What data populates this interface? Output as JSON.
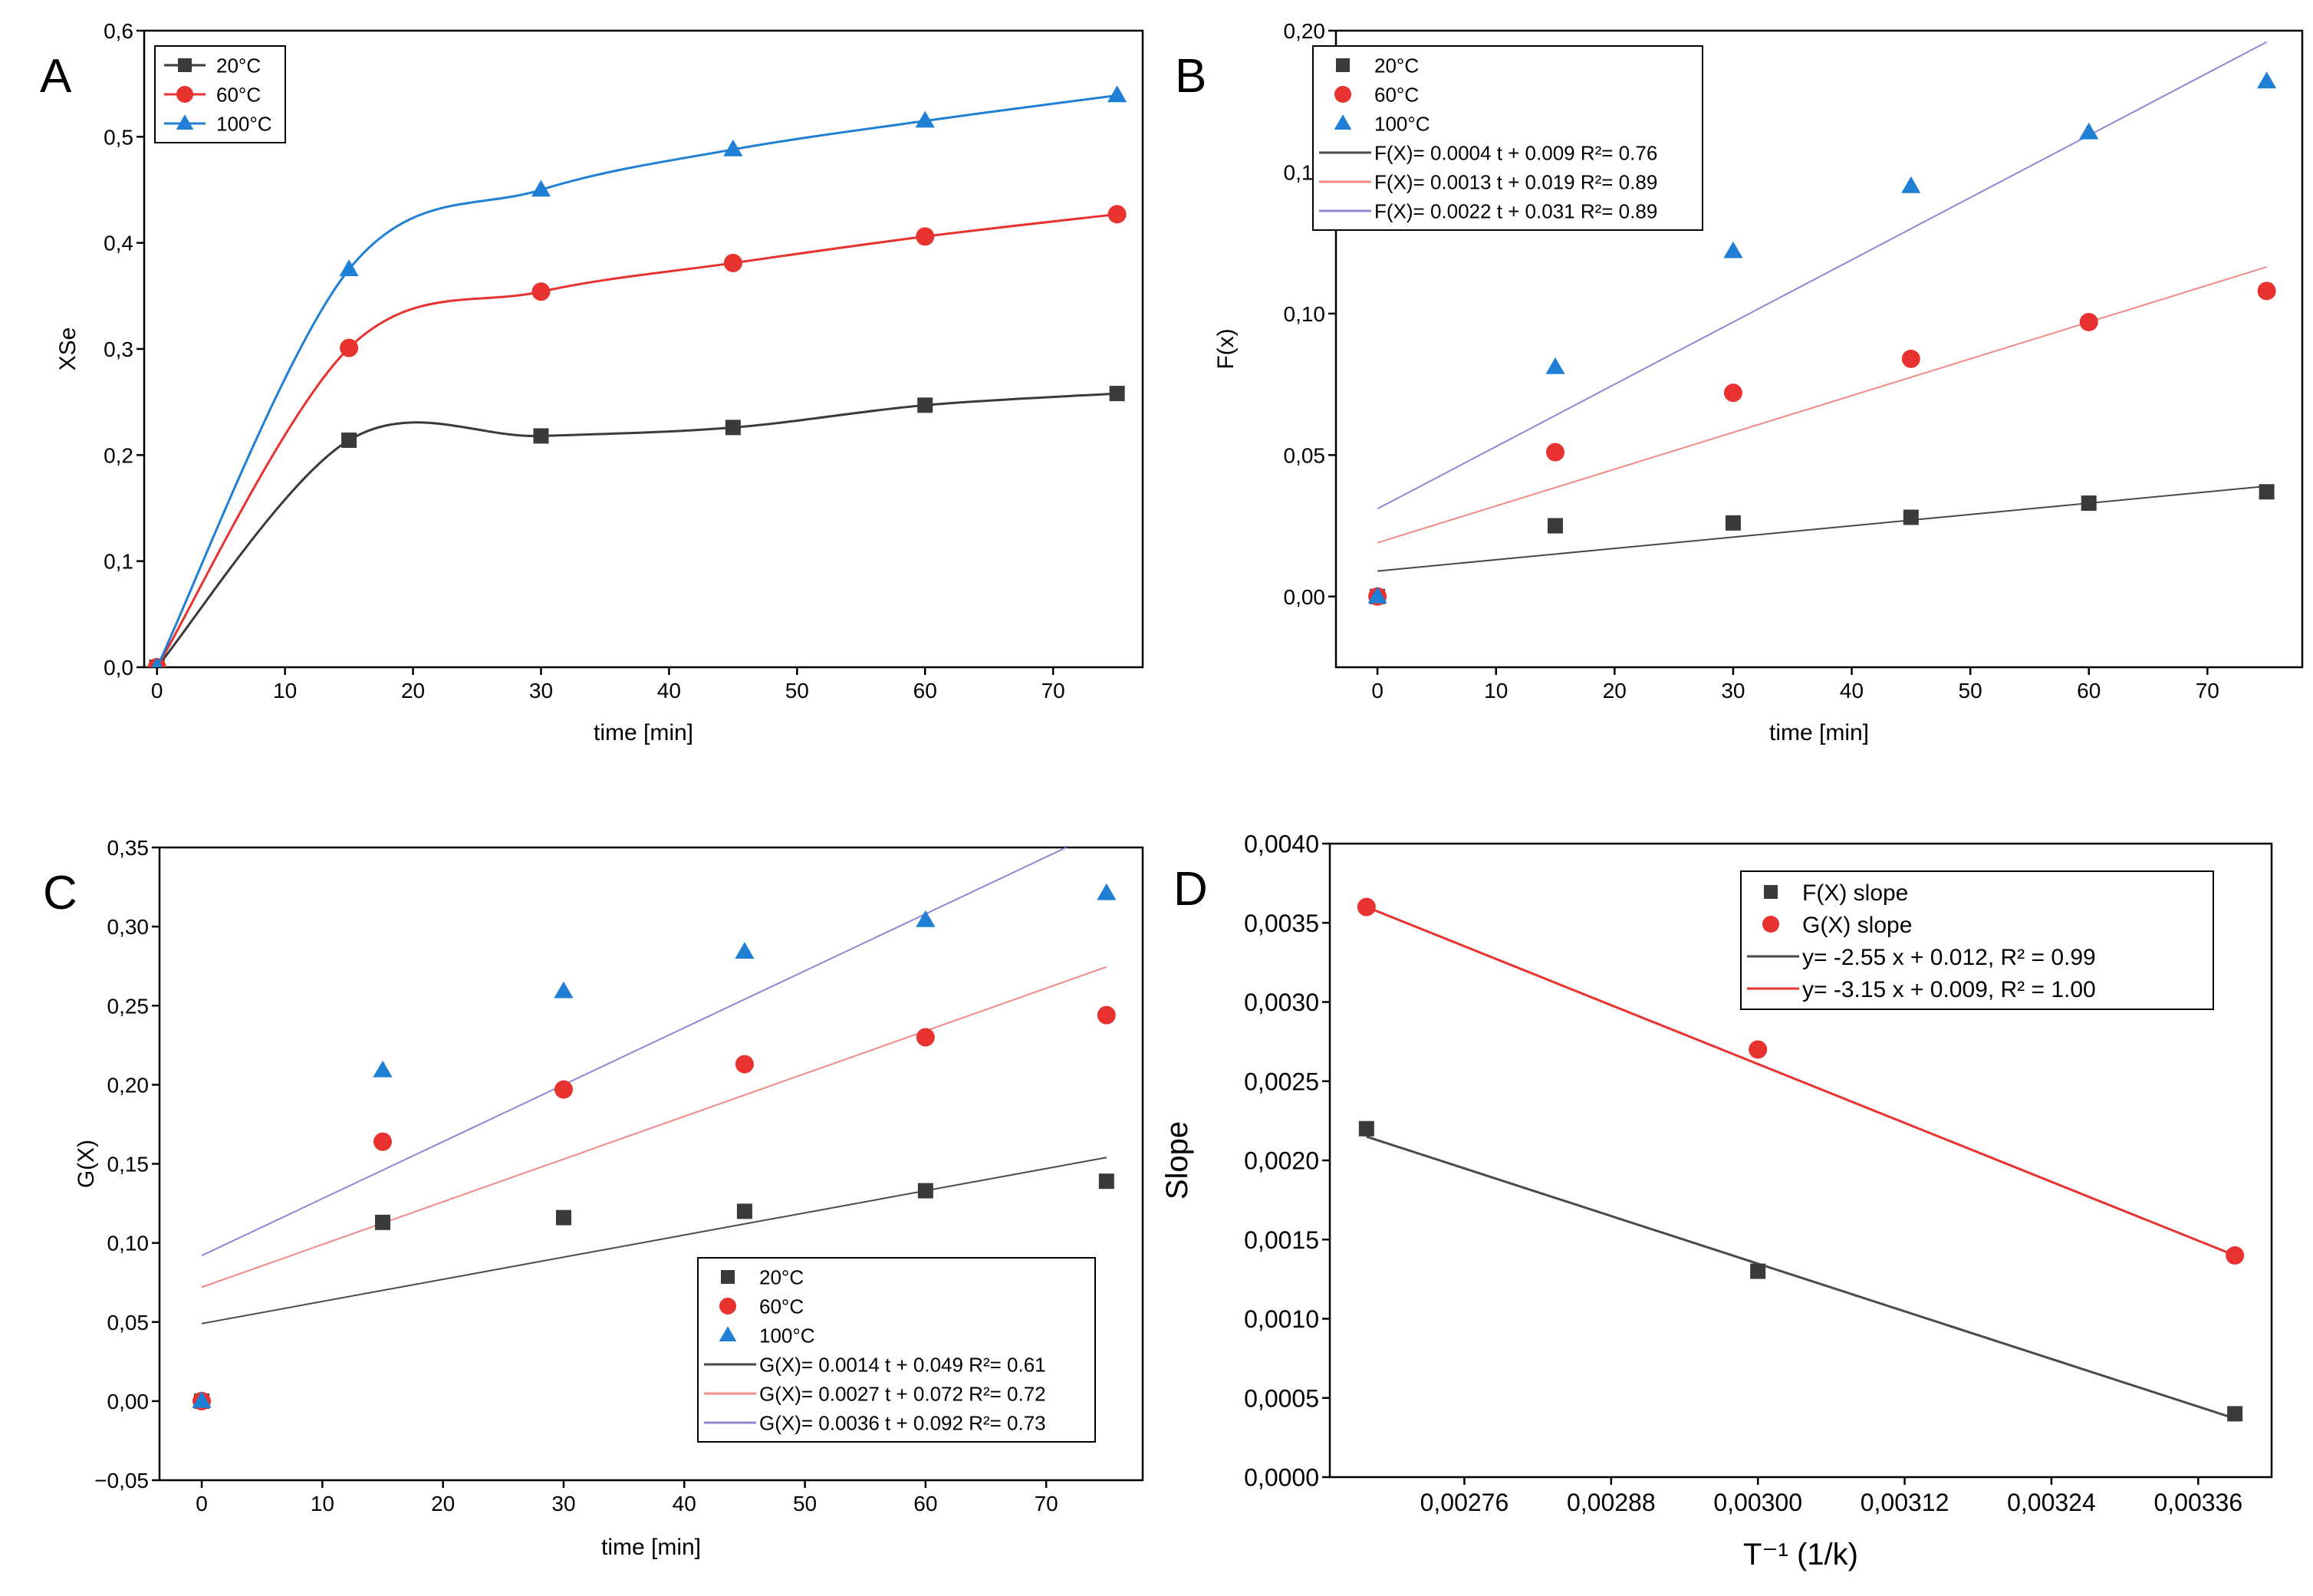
{
  "panels": [
    {
      "id": "A",
      "letter": "A",
      "chart_data": {
        "type": "line",
        "xlabel": "time [min]",
        "ylabel": "XSe",
        "xlim": [
          -1,
          77
        ],
        "ylim": [
          0,
          0.6
        ],
        "xticks": [
          0,
          10,
          20,
          30,
          40,
          50,
          60,
          70
        ],
        "xtick_labels": [
          "0",
          "10",
          "20",
          "30",
          "40",
          "50",
          "60",
          "70"
        ],
        "yticks": [
          0,
          0.1,
          0.2,
          0.3,
          0.4,
          0.5,
          0.6
        ],
        "ytick_labels": [
          "0,0",
          "0,1",
          "0,2",
          "0,3",
          "0,4",
          "0,5",
          "0,6"
        ],
        "legend_position": "top-left",
        "series": [
          {
            "name": "20°C",
            "color": "#3a3a3a",
            "marker": "square",
            "curve": "smooth",
            "x": [
              0,
              15,
              30,
              45,
              60,
              75
            ],
            "y": [
              0,
              0.214,
              0.218,
              0.226,
              0.247,
              0.258
            ]
          },
          {
            "name": "60°C",
            "color": "#e8322f",
            "marker": "circle",
            "curve": "smooth",
            "x": [
              0,
              15,
              30,
              45,
              60,
              75
            ],
            "y": [
              0,
              0.301,
              0.354,
              0.381,
              0.406,
              0.427
            ]
          },
          {
            "name": "100°C",
            "color": "#1f7fd4",
            "marker": "triangle",
            "curve": "smooth",
            "x": [
              0,
              15,
              30,
              45,
              60,
              75
            ],
            "y": [
              0,
              0.375,
              0.45,
              0.488,
              0.515,
              0.539
            ]
          }
        ]
      }
    },
    {
      "id": "B",
      "letter": "B",
      "chart_data": {
        "type": "scatter",
        "xlabel": "time [min]",
        "ylabel": "F(x)",
        "xlim": [
          -3.5,
          78
        ],
        "ylim": [
          -0.025,
          0.2
        ],
        "xticks": [
          0,
          10,
          20,
          30,
          40,
          50,
          60,
          70
        ],
        "xtick_labels": [
          "0",
          "10",
          "20",
          "30",
          "40",
          "50",
          "60",
          "70"
        ],
        "yticks": [
          0,
          0.05,
          0.1,
          0.15,
          0.2
        ],
        "ytick_labels": [
          "0,00",
          "0,05",
          "0,10",
          "0,15",
          "0,20"
        ],
        "legend_position": "top-left",
        "series": [
          {
            "name": "20°C",
            "color": "#3a3a3a",
            "marker": "square",
            "x": [
              0,
              15,
              30,
              45,
              60,
              75
            ],
            "y": [
              0,
              0.025,
              0.026,
              0.028,
              0.033,
              0.037
            ]
          },
          {
            "name": "60°C",
            "color": "#e8322f",
            "marker": "circle",
            "x": [
              0,
              15,
              30,
              45,
              60,
              75
            ],
            "y": [
              0,
              0.051,
              0.072,
              0.084,
              0.097,
              0.108
            ]
          },
          {
            "name": "100°C",
            "color": "#1f7fd4",
            "marker": "triangle",
            "x": [
              0,
              15,
              30,
              45,
              60,
              75
            ],
            "y": [
              0,
              0.081,
              0.122,
              0.145,
              0.164,
              0.182
            ]
          }
        ],
        "fits": [
          {
            "label": "F(X)= 0.0004 t + 0.009 R²= 0.76",
            "color": "#4a4a4a",
            "slope": 0.0004,
            "intercept": 0.009
          },
          {
            "label": "F(X)= 0.0013 t + 0.019 R²= 0.89",
            "color": "#f08a84",
            "slope": 0.0013,
            "intercept": 0.019
          },
          {
            "label": "F(X)= 0.0022 t + 0.031 R²= 0.89",
            "color": "#8f86d6",
            "slope": 0.0022,
            "intercept": 0.031
          }
        ]
      }
    },
    {
      "id": "C",
      "letter": "C",
      "chart_data": {
        "type": "scatter",
        "xlabel": "time [min]",
        "ylabel": "G(X)",
        "xlim": [
          -3.5,
          78
        ],
        "ylim": [
          -0.05,
          0.35
        ],
        "xticks": [
          0,
          10,
          20,
          30,
          40,
          50,
          60,
          70
        ],
        "xtick_labels": [
          "0",
          "10",
          "20",
          "30",
          "40",
          "50",
          "60",
          "70"
        ],
        "yticks": [
          -0.05,
          0,
          0.05,
          0.1,
          0.15,
          0.2,
          0.25,
          0.3,
          0.35
        ],
        "ytick_labels": [
          "−0,05",
          "0,00",
          "0,05",
          "0,10",
          "0,15",
          "0,20",
          "0,25",
          "0,30",
          "0,35"
        ],
        "legend_position": "bottom-right",
        "series": [
          {
            "name": "20°C",
            "color": "#3a3a3a",
            "marker": "square",
            "x": [
              0,
              15,
              30,
              45,
              60,
              75
            ],
            "y": [
              0,
              0.113,
              0.116,
              0.12,
              0.133,
              0.139
            ]
          },
          {
            "name": "60°C",
            "color": "#e8322f",
            "marker": "circle",
            "x": [
              0,
              15,
              30,
              45,
              60,
              75
            ],
            "y": [
              0,
              0.164,
              0.197,
              0.213,
              0.23,
              0.244
            ]
          },
          {
            "name": "100°C",
            "color": "#1f7fd4",
            "marker": "triangle",
            "x": [
              0,
              15,
              30,
              45,
              60,
              75
            ],
            "y": [
              0,
              0.209,
              0.259,
              0.284,
              0.304,
              0.321
            ]
          }
        ],
        "fits": [
          {
            "label": "G(X)= 0.0014 t + 0.049 R²= 0.61",
            "color": "#4a4a4a",
            "slope": 0.0014,
            "intercept": 0.049
          },
          {
            "label": "G(X)= 0.0027 t + 0.072 R²= 0.72",
            "color": "#f08a84",
            "slope": 0.0027,
            "intercept": 0.072
          },
          {
            "label": "G(X)= 0.0036 t + 0.092 R²= 0.73",
            "color": "#8f86d6",
            "slope": 0.0036,
            "intercept": 0.092
          }
        ]
      }
    },
    {
      "id": "D",
      "letter": "D",
      "chart_data": {
        "type": "scatter",
        "xlabel": "T⁻¹ (1/k)",
        "ylabel": "Slope",
        "xlim": [
          0.00265,
          0.00342
        ],
        "ylim": [
          0,
          0.004
        ],
        "xticks": [
          0.00276,
          0.00288,
          0.003,
          0.00312,
          0.00324,
          0.00336
        ],
        "xtick_labels": [
          "0,00276",
          "0,00288",
          "0,00300",
          "0,00312",
          "0,00324",
          "0,00336"
        ],
        "yticks": [
          0,
          0.0005,
          0.001,
          0.0015,
          0.002,
          0.0025,
          0.003,
          0.0035,
          0.004
        ],
        "ytick_labels": [
          "0,0000",
          "0,0005",
          "0,0010",
          "0,0015",
          "0,0020",
          "0,0025",
          "0,0030",
          "0,0035",
          "0,0040"
        ],
        "legend_position": "top-right",
        "series": [
          {
            "name": "F(X) slope",
            "color": "#3a3a3a",
            "marker": "square",
            "x": [
              0.00268,
              0.003,
              0.00339
            ],
            "y": [
              0.0022,
              0.0013,
              0.0004
            ]
          },
          {
            "name": "G(X) slope",
            "color": "#e8322f",
            "marker": "circle",
            "x": [
              0.00268,
              0.003,
              0.00339
            ],
            "y": [
              0.0036,
              0.0027,
              0.0014
            ]
          }
        ],
        "fits": [
          {
            "label": "y= -2.55 x + 0.012,  R² = 0.99",
            "color": "#4a4a4a",
            "x": [
              0.00268,
              0.00339
            ],
            "y": [
              0.00215,
              0.00037
            ]
          },
          {
            "label": "y= -3.15 x + 0.009,  R² = 1.00",
            "color": "#e8322f",
            "x": [
              0.00268,
              0.00339
            ],
            "y": [
              0.0036,
              0.0014
            ]
          }
        ]
      }
    }
  ]
}
